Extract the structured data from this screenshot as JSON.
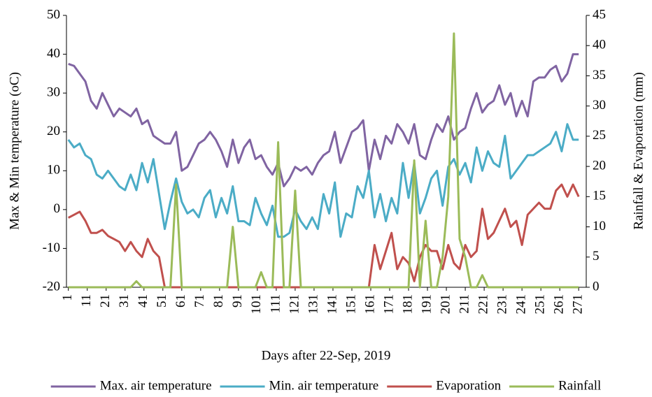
{
  "chart_data": {
    "type": "line",
    "y_label": "Max & Min temperature (oC)",
    "y2_label": "Rainfall & Evaporation (mm)",
    "x_label": "Days after 22-Sep, 2019",
    "xlim": [
      0,
      275
    ],
    "xticks": [
      1,
      11,
      21,
      31,
      41,
      51,
      61,
      71,
      81,
      91,
      101,
      111,
      121,
      131,
      141,
      151,
      161,
      171,
      181,
      191,
      201,
      211,
      221,
      231,
      241,
      251,
      261,
      271
    ],
    "ylim": [
      -20,
      50
    ],
    "yticks": [
      -20,
      -10,
      0,
      10,
      20,
      30,
      40,
      50
    ],
    "y2lim": [
      0,
      45
    ],
    "y2ticks": [
      0,
      5,
      10,
      15,
      20,
      25,
      30,
      35,
      40,
      45
    ],
    "x": [
      1,
      4,
      7,
      10,
      13,
      16,
      19,
      22,
      25,
      28,
      31,
      34,
      37,
      40,
      43,
      46,
      49,
      52,
      55,
      58,
      61,
      64,
      67,
      70,
      73,
      76,
      79,
      82,
      85,
      88,
      91,
      94,
      97,
      100,
      103,
      106,
      109,
      112,
      115,
      118,
      121,
      124,
      127,
      130,
      133,
      136,
      139,
      142,
      145,
      148,
      151,
      154,
      157,
      160,
      163,
      166,
      169,
      172,
      175,
      178,
      181,
      184,
      187,
      190,
      193,
      196,
      199,
      202,
      205,
      208,
      211,
      214,
      217,
      220,
      223,
      226,
      229,
      232,
      235,
      238,
      241,
      244,
      247,
      250,
      253,
      256,
      259,
      262,
      265,
      268,
      271
    ],
    "series": [
      {
        "name": "Max. air temperature",
        "color": "#8064a2",
        "values": [
          37.5,
          37,
          35,
          33,
          28,
          26,
          30,
          27,
          24,
          26,
          25,
          24,
          26,
          22,
          23,
          19,
          18,
          17,
          17,
          20,
          10,
          11,
          14,
          17,
          18,
          20,
          18,
          15,
          11,
          18,
          12,
          16,
          18,
          13,
          14,
          11,
          9,
          12,
          6,
          8,
          11,
          10,
          11,
          9,
          12,
          14,
          15,
          20,
          12,
          16,
          20,
          21,
          23,
          10,
          18,
          13,
          19,
          17,
          22,
          20,
          17,
          22,
          14,
          13,
          18,
          22,
          20,
          24,
          18,
          20,
          21,
          26,
          30,
          25,
          27,
          28,
          32,
          27,
          30,
          24,
          28,
          24,
          33,
          34,
          34,
          36,
          37,
          33,
          35,
          40,
          40
        ]
      },
      {
        "name": "Min. air temperature",
        "color": "#4bacc6",
        "values": [
          18,
          16,
          17,
          14,
          13,
          9,
          8,
          10,
          8,
          6,
          5,
          9,
          5,
          12,
          7,
          13,
          4,
          -5,
          2,
          8,
          2,
          -1,
          0,
          -2,
          3,
          5,
          -2,
          3,
          -1,
          6,
          -3,
          -3,
          -4,
          3,
          -1,
          -4,
          1,
          -7,
          -7,
          -6,
          0,
          -3,
          -5,
          -2,
          -5,
          4,
          -1,
          7,
          -7,
          -1,
          -2,
          6,
          3,
          10,
          -2,
          4,
          -3,
          3,
          -1,
          12,
          3,
          12,
          -1,
          3,
          8,
          10,
          1,
          11,
          13,
          9,
          12,
          7,
          16,
          10,
          15,
          12,
          11,
          19,
          8,
          10,
          12,
          14,
          14,
          15,
          16,
          17,
          20,
          15,
          22,
          18,
          18
        ]
      },
      {
        "name": "Evaporation",
        "color": "#c0504d",
        "axis": "y2",
        "values": [
          11.5,
          12,
          12.5,
          11,
          9,
          9,
          9.5,
          8.5,
          8,
          7.5,
          6,
          7.5,
          6,
          5,
          8,
          6,
          5,
          0,
          0,
          0,
          0,
          0,
          0,
          0,
          0,
          0,
          0,
          0,
          0,
          0,
          0,
          0,
          0,
          0,
          0,
          0,
          0,
          0,
          0,
          0,
          0,
          0,
          0,
          0,
          0,
          0,
          0,
          0,
          0,
          0,
          0,
          0,
          0,
          0,
          7,
          3,
          6,
          9,
          3,
          5,
          4,
          1,
          5,
          7,
          6,
          6,
          3,
          7,
          4,
          3,
          7,
          5,
          6,
          13,
          8,
          9,
          11,
          13,
          10,
          11,
          7,
          12,
          13,
          14,
          13,
          13,
          16,
          17,
          15,
          17,
          15
        ]
      },
      {
        "name": "Rainfall",
        "color": "#9bbb59",
        "axis": "y2",
        "values": [
          0,
          0,
          0,
          0,
          0,
          0,
          0,
          0,
          0,
          0,
          0,
          0,
          1,
          0,
          0,
          0,
          0,
          0,
          0,
          17,
          0,
          0,
          0,
          0,
          0,
          0,
          0,
          0,
          0,
          10,
          0,
          0,
          0,
          0,
          2.5,
          0,
          0,
          24,
          0,
          0,
          16,
          0,
          0,
          0,
          0,
          0,
          0,
          0,
          0,
          0,
          0,
          0,
          0,
          0,
          0,
          0,
          0,
          0,
          0,
          0,
          0,
          21,
          0,
          11,
          0,
          0,
          5,
          15,
          42,
          8,
          5,
          0,
          0,
          2,
          0,
          0,
          0,
          0,
          0,
          0,
          0,
          0,
          0,
          0,
          0,
          0,
          0,
          0,
          0,
          0,
          0
        ]
      }
    ]
  }
}
